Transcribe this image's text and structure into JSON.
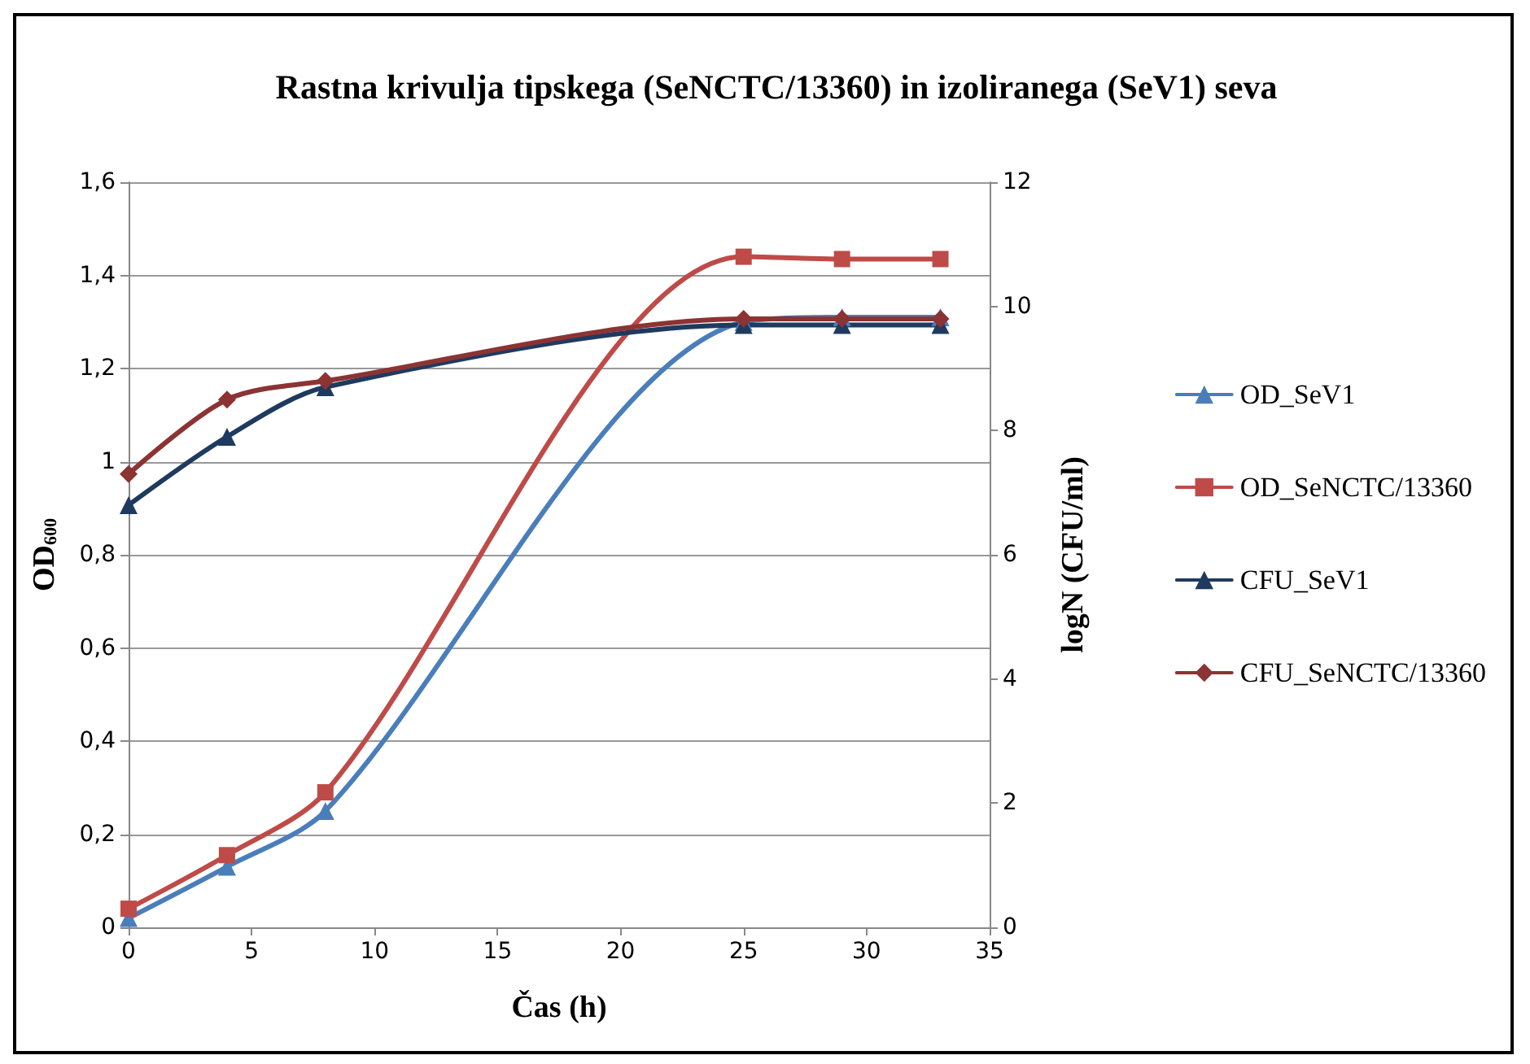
{
  "chart_data": {
    "type": "line",
    "title": "Rastna krivulja tipskega (SeNCTC/13360) in izoliranega (SeV1) seva",
    "xlabel": "Čas (h)",
    "ylabel": "OD$_{600}$",
    "y2label": "logN (CFU/ml)",
    "x": [
      0,
      4,
      8,
      25,
      29,
      33
    ],
    "series": [
      {
        "name": "OD_SeV1",
        "color": "#4a7ebb",
        "marker": "triangle",
        "values": [
          0.02,
          0.13,
          0.25,
          1.3,
          1.31,
          1.31
        ]
      },
      {
        "name": "OD_SeNCTC/13360",
        "color": "#be4b48",
        "marker": "square",
        "values": [
          0.04,
          0.155,
          0.29,
          1.44,
          1.435,
          1.435
        ]
      },
      {
        "name": "CFU_SeV1",
        "color": "#1f3a5f",
        "marker": "triangle",
        "axis": "y2",
        "values": [
          6.8,
          7.9,
          8.7,
          9.7,
          9.7,
          9.7
        ]
      },
      {
        "name": "CFU_SeNCTC/13360",
        "color": "#8c3334",
        "marker": "diamond",
        "axis": "y2",
        "values": [
          7.3,
          8.5,
          8.8,
          9.8,
          9.8,
          9.8
        ]
      }
    ],
    "xlim": [
      0,
      35
    ],
    "xticks": [
      0,
      5,
      10,
      15,
      20,
      25,
      30,
      35
    ],
    "ylim": [
      0,
      1.6
    ],
    "yticks": [
      0,
      {
        "value": 0.2,
        "label": "0,2"
      },
      {
        "value": 0.4,
        "label": "0,4"
      },
      {
        "value": 0.6,
        "label": "0,6"
      },
      {
        "value": 0.8,
        "label": "0,8"
      },
      1,
      {
        "value": 1.2,
        "label": "1,2"
      },
      {
        "value": 1.4,
        "label": "1,4"
      },
      {
        "value": 1.6,
        "label": "1,6"
      }
    ],
    "y2lim": [
      0,
      12
    ],
    "y2ticks": [
      0,
      2,
      4,
      6,
      8,
      10,
      12
    ],
    "grid": "y",
    "legend": "right"
  }
}
